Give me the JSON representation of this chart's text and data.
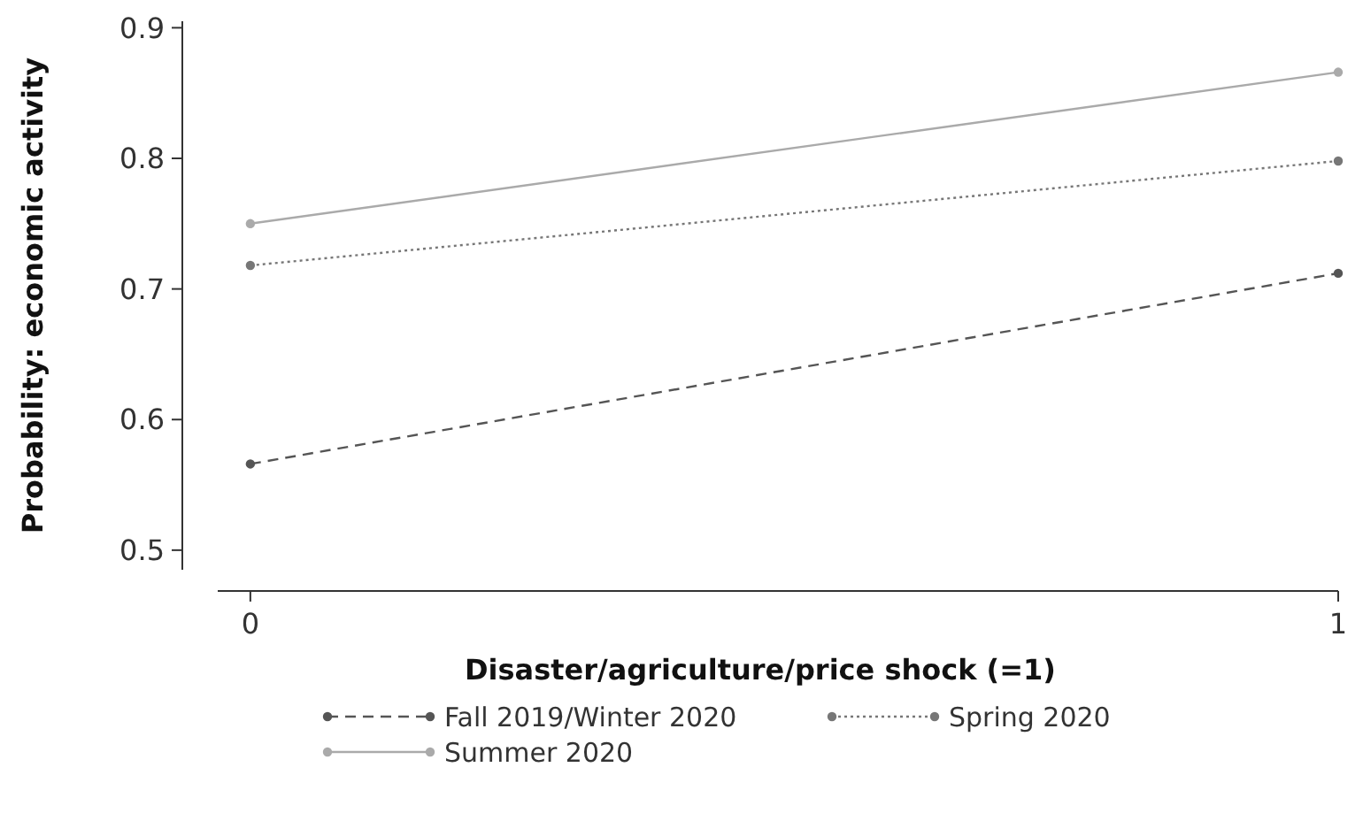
{
  "chart_data": {
    "type": "line",
    "xlabel": "Disaster/agriculture/price shock (=1)",
    "ylabel": "Probability: economic activity",
    "x": [
      0,
      1
    ],
    "series": [
      {
        "name": "Fall 2019/Winter 2020",
        "color": "#555555",
        "line_style": "dashed",
        "values": [
          0.566,
          0.712
        ]
      },
      {
        "name": "Spring 2020",
        "color": "#777777",
        "line_style": "dotted",
        "values": [
          0.718,
          0.798
        ]
      },
      {
        "name": "Summer 2020",
        "color": "#aaaaaa",
        "line_style": "solid",
        "values": [
          0.75,
          0.866
        ]
      }
    ],
    "xlim": [
      -0.03,
      1
    ],
    "xticks": [
      0,
      1
    ],
    "ylim": [
      0.485,
      0.905
    ],
    "yticks": [
      0.5,
      0.6,
      0.7,
      0.8,
      0.9
    ],
    "marker": "circle",
    "grid": false,
    "legend": "bottom"
  }
}
